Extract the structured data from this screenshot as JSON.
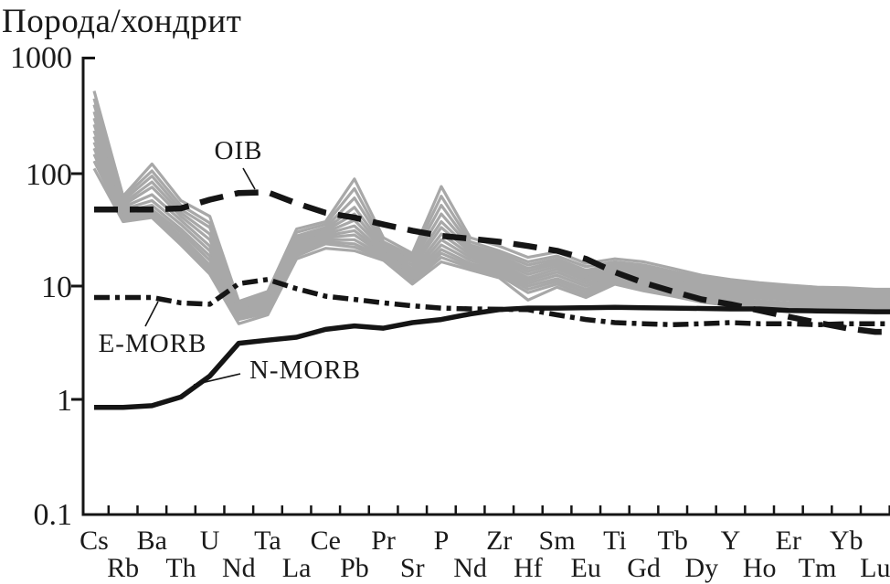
{
  "chart_data": {
    "type": "line",
    "title": "Порода/хондрит",
    "y_axis": {
      "scale": "log",
      "tick_labels": [
        "1000",
        "100",
        "10",
        "1",
        "0.1"
      ],
      "tick_values": [
        1000,
        100,
        10,
        1,
        0.1
      ],
      "range": [
        0.1,
        1000
      ]
    },
    "x_categories": [
      "Cs",
      "Rb",
      "Ba",
      "Th",
      "U",
      "Nd",
      "Ta",
      "La",
      "Ce",
      "Pb",
      "Pr",
      "Sr",
      "P",
      "Nd",
      "Zr",
      "Hf",
      "Sm",
      "Eu",
      "Ti",
      "Gd",
      "Tb",
      "Dy",
      "Y",
      "Ho",
      "Er",
      "Tm",
      "Yb",
      "Lu"
    ],
    "colors": {
      "samples": "#a8a8a8",
      "reference": "#151515",
      "background": "#ffffff"
    },
    "series": [
      {
        "name": "samples",
        "style": "solid-gray",
        "lines": [
          [
            500,
            60,
            115,
            55,
            40,
            7.2,
            8.8,
            31,
            36,
            85,
            26,
            19,
            73,
            26,
            22,
            17.5,
            19.5,
            15.5,
            17,
            16,
            14,
            12.2,
            11.2,
            10.5,
            10,
            9.6,
            9.5,
            9.2
          ],
          [
            430,
            58,
            100,
            50,
            35,
            7.0,
            8.4,
            29,
            34,
            70,
            24,
            18,
            60,
            24,
            20,
            16,
            18,
            14.5,
            16,
            15,
            13.2,
            11.6,
            10.7,
            10,
            9.6,
            9.2,
            9.1,
            8.9
          ],
          [
            380,
            55,
            90,
            46,
            32,
            6.8,
            8.0,
            27,
            32,
            58,
            23,
            17,
            50,
            22.5,
            19,
            15,
            17,
            13.5,
            15.2,
            14.2,
            12.6,
            11,
            10.2,
            9.6,
            9.2,
            8.9,
            8.8,
            8.6
          ],
          [
            330,
            52,
            80,
            43,
            28,
            6.6,
            7.7,
            26,
            31,
            48,
            22,
            16,
            42,
            21.5,
            18,
            14,
            16.2,
            12.8,
            14.6,
            13.5,
            12,
            10.6,
            9.8,
            9.2,
            8.9,
            8.6,
            8.5,
            8.3
          ],
          [
            290,
            50,
            72,
            40,
            25,
            6.4,
            7.4,
            25,
            30,
            42,
            21,
            15,
            36,
            20.5,
            17,
            13.2,
            15.4,
            12.2,
            14,
            12.9,
            11.5,
            10.2,
            9.4,
            8.9,
            8.6,
            8.3,
            8.2,
            8.0
          ],
          [
            255,
            48,
            62,
            37,
            22,
            6.2,
            7.1,
            24,
            29,
            37,
            20.5,
            14,
            32,
            19.5,
            16.2,
            12.4,
            14.6,
            11.6,
            13.4,
            12.3,
            11,
            9.8,
            9.1,
            8.6,
            8.3,
            8.0,
            7.9,
            7.7
          ],
          [
            225,
            46,
            55,
            34,
            20,
            6.0,
            6.9,
            23,
            28,
            33,
            19.5,
            13.2,
            28,
            18.5,
            15.4,
            11.6,
            13.8,
            11,
            12.8,
            11.7,
            10.5,
            9.4,
            8.7,
            8.3,
            8.0,
            7.7,
            7.6,
            7.4
          ],
          [
            200,
            44,
            50,
            31,
            18,
            5.8,
            6.6,
            22,
            27,
            30,
            19,
            12.6,
            25,
            17.5,
            14.6,
            11,
            13,
            10.4,
            12.2,
            11.1,
            10,
            9,
            8.4,
            8.0,
            7.7,
            7.4,
            7.3,
            7.1
          ],
          [
            178,
            43,
            46,
            29,
            16.5,
            5.6,
            6.3,
            21,
            26,
            27.5,
            18.5,
            12,
            22.5,
            16.5,
            14,
            10.4,
            12.2,
            9.8,
            11.8,
            10.6,
            9.6,
            8.6,
            8.0,
            7.7,
            7.4,
            7.1,
            7.0,
            6.8
          ],
          [
            158,
            41,
            43,
            27,
            15,
            5.4,
            6.1,
            20,
            25,
            25,
            18,
            11.5,
            20.5,
            15.5,
            13.4,
            9.8,
            11.4,
            9.2,
            11.4,
            10.1,
            9.2,
            8.2,
            7.6,
            7.3,
            7.0,
            6.8,
            6.7,
            6.5
          ],
          [
            140,
            39,
            41,
            25.5,
            14,
            5.2,
            5.9,
            19,
            24,
            23,
            17.5,
            11,
            19,
            14.8,
            12.8,
            9.2,
            10.8,
            8.7,
            11,
            9.7,
            8.8,
            7.8,
            7.3,
            7.0,
            6.7,
            6.5,
            6.4,
            6.2
          ],
          [
            122,
            38,
            40,
            24,
            13.2,
            5.0,
            5.7,
            18,
            23,
            21.5,
            17,
            10.6,
            17.5,
            14.2,
            12.2,
            8.6,
            10.2,
            8.2,
            10.6,
            9.3,
            8.4,
            7.5,
            7.0,
            6.7,
            6.5,
            6.2,
            6.1,
            6.0
          ],
          [
            105,
            36,
            39,
            22.5,
            12.5,
            4.6,
            5.5,
            17,
            21,
            20,
            16.5,
            10.2,
            16,
            13.6,
            11.6,
            7.4,
            9.6,
            7.8,
            10.2,
            8.9,
            8.0,
            7.1,
            6.6,
            6.4,
            6.2,
            6.0,
            5.9,
            5.8
          ]
        ]
      },
      {
        "name": "OIB",
        "style": "dashed",
        "values": [
          46,
          46,
          46,
          47,
          56,
          64,
          65,
          52,
          43,
          39,
          34,
          30,
          27,
          25.5,
          24,
          22,
          20,
          17,
          13,
          10.5,
          8.8,
          7.5,
          6.8,
          6.0,
          5.3,
          4.7,
          4.2,
          3.9
        ]
      },
      {
        "name": "E-MORB",
        "style": "dash-dot",
        "values": [
          7.8,
          7.8,
          7.8,
          7.0,
          6.8,
          10.3,
          11.2,
          9.3,
          8.0,
          7.5,
          7.0,
          6.6,
          6.3,
          6.2,
          6.15,
          6.1,
          5.5,
          5.0,
          4.7,
          4.6,
          4.5,
          4.6,
          4.7,
          4.6,
          4.6,
          4.5,
          4.6,
          4.6
        ]
      },
      {
        "name": "N-MORB",
        "style": "solid",
        "values": [
          0.85,
          0.85,
          0.88,
          1.05,
          1.6,
          3.1,
          3.3,
          3.5,
          4.1,
          4.4,
          4.2,
          4.7,
          5.0,
          5.6,
          6.1,
          6.3,
          6.3,
          6.35,
          6.4,
          6.35,
          6.3,
          6.25,
          6.2,
          6.2,
          6.0,
          5.95,
          5.9,
          5.85
        ]
      }
    ],
    "annotations": {
      "oib": {
        "text": "OIB",
        "x": 261,
        "y": 174,
        "leader": [
          266,
          184,
          279,
          207
        ]
      },
      "e_morb": {
        "text": "E-MORB",
        "x": 167,
        "y": 385,
        "leader": [
          159,
          357,
          173,
          330
        ]
      },
      "n_morb": {
        "text": "N-MORB",
        "x": 334,
        "y": 414,
        "leader": [
          212,
          421,
          263,
          409
        ]
      }
    },
    "legend_position": "none",
    "grid": false
  }
}
